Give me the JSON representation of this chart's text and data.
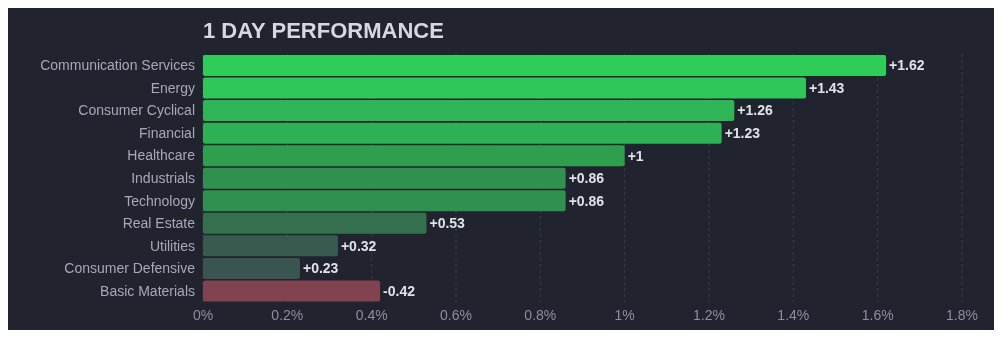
{
  "chart_data": {
    "type": "bar",
    "orientation": "horizontal",
    "title": "1 DAY PERFORMANCE",
    "categories": [
      "Communication Services",
      "Energy",
      "Consumer Cyclical",
      "Financial",
      "Healthcare",
      "Industrials",
      "Technology",
      "Real Estate",
      "Utilities",
      "Consumer Defensive",
      "Basic Materials"
    ],
    "values": [
      1.62,
      1.43,
      1.26,
      1.23,
      1,
      0.86,
      0.86,
      0.53,
      0.32,
      0.23,
      -0.42
    ],
    "base": [
      0,
      0,
      0,
      0,
      0,
      0,
      0,
      0,
      0,
      0,
      0.42
    ],
    "value_labels": [
      "+1.62",
      "+1.43",
      "+1.26",
      "+1.23",
      "+1",
      "+0.86",
      "+0.86",
      "+0.53",
      "+0.32",
      "+0.23",
      "-0.42"
    ],
    "colors": [
      "#30cc5a",
      "#2fc65a",
      "#2eb555",
      "#2eb154",
      "#2f9e4f",
      "#30904d",
      "#30904d",
      "#34704d",
      "#385b4f",
      "#3a544f",
      "#80434f"
    ],
    "xlim": [
      0,
      1.8
    ],
    "xticks": [
      {
        "value": 0,
        "label": "0%"
      },
      {
        "value": 0.2,
        "label": "0.2%"
      },
      {
        "value": 0.4,
        "label": "0.4%"
      },
      {
        "value": 0.6,
        "label": "0.6%"
      },
      {
        "value": 0.8,
        "label": "0.8%"
      },
      {
        "value": 1,
        "label": "1%"
      },
      {
        "value": 1.2,
        "label": "1.2%"
      },
      {
        "value": 1.4,
        "label": "1.4%"
      },
      {
        "value": 1.6,
        "label": "1.6%"
      },
      {
        "value": 1.8,
        "label": "1.8%"
      }
    ],
    "grid": "x"
  }
}
